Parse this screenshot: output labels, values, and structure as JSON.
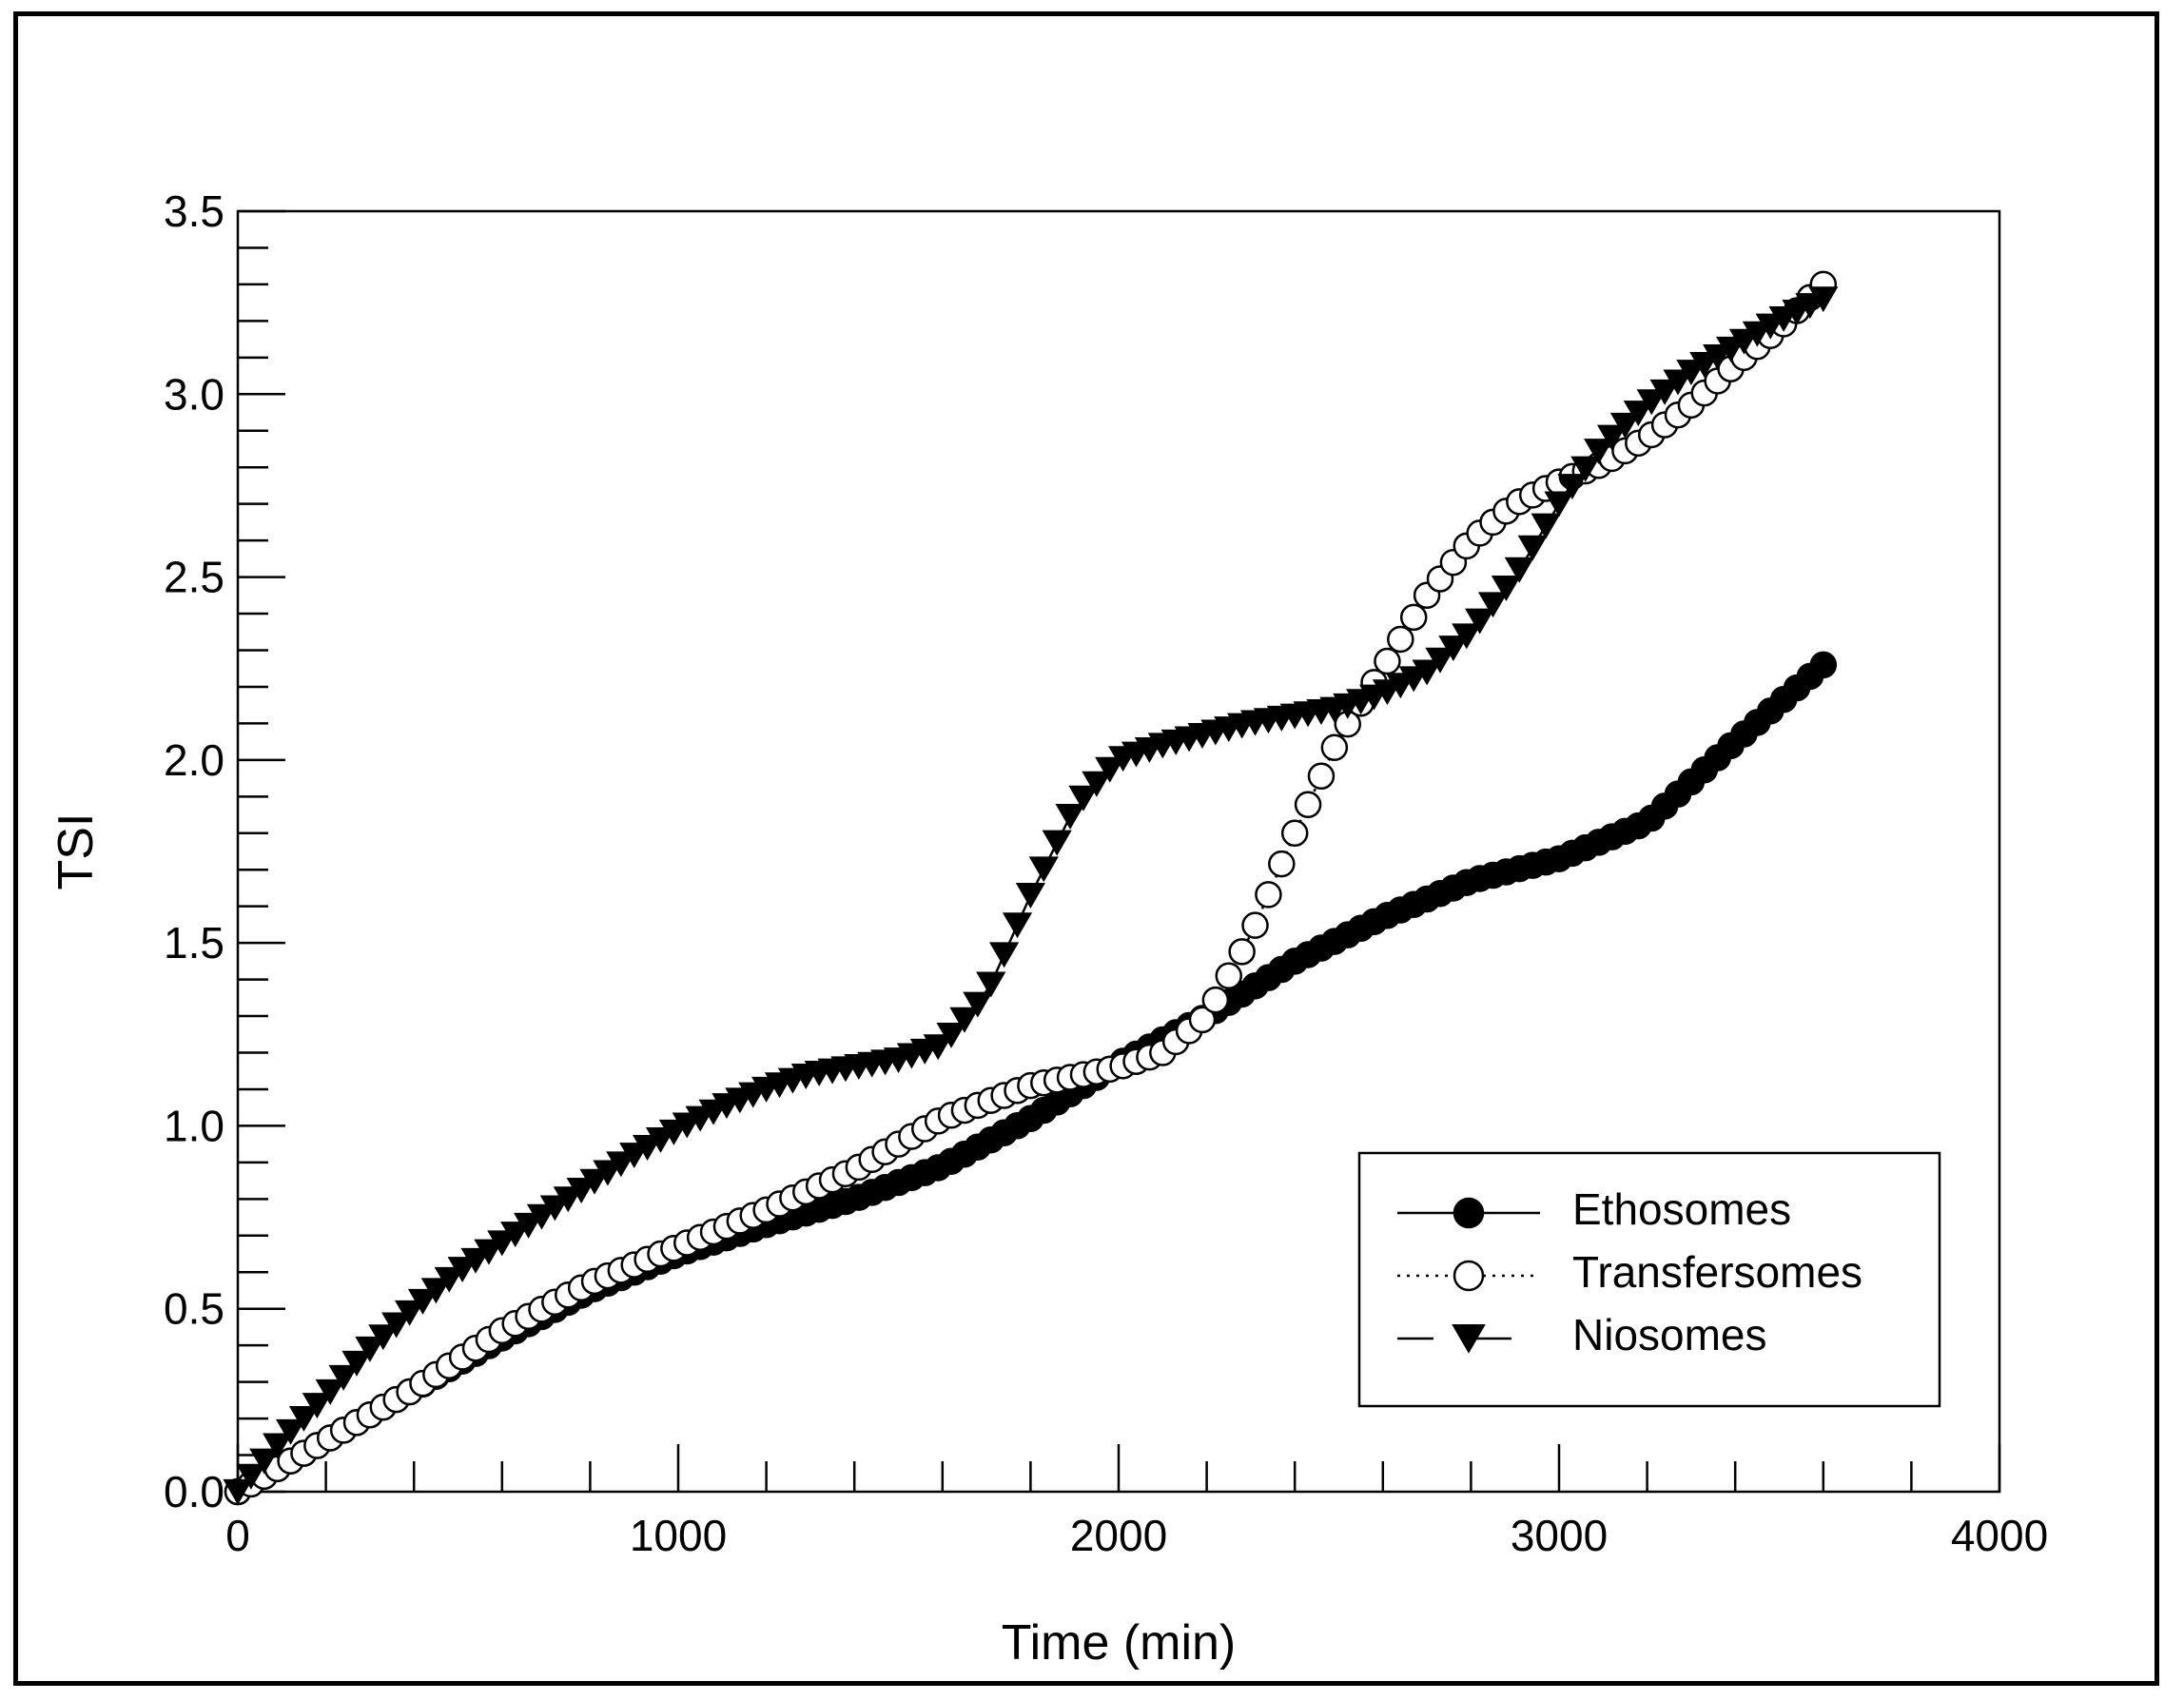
{
  "chart_data": {
    "type": "scatter",
    "title": "",
    "xlabel": "Time (min)",
    "ylabel": "TSI",
    "xlim": [
      0,
      4000
    ],
    "ylim": [
      0,
      3.5
    ],
    "x_major_ticks": [
      0,
      1000,
      2000,
      3000,
      4000
    ],
    "x_tick_labels": [
      "0",
      "1000",
      "2000",
      "3000",
      "4000"
    ],
    "y_major_ticks": [
      0,
      0.5,
      1.0,
      1.5,
      2.0,
      2.5,
      3.0,
      3.5
    ],
    "y_tick_labels": [
      "0.0",
      "0.5",
      "1.0",
      "1.5",
      "2.0",
      "2.5",
      "3.0",
      "3.5"
    ],
    "grid": false,
    "legend_position": "bottom-right",
    "series": [
      {
        "name": "Ethosomes",
        "line_style": "solid",
        "marker": "filled-circle",
        "x": [
          0,
          200,
          400,
          600,
          800,
          1000,
          1200,
          1400,
          1600,
          1800,
          2000,
          2200,
          2400,
          2600,
          2800,
          3000,
          3200,
          3400,
          3600
        ],
        "y": [
          0,
          0.14,
          0.28,
          0.42,
          0.55,
          0.65,
          0.73,
          0.8,
          0.89,
          1.02,
          1.17,
          1.3,
          1.45,
          1.57,
          1.67,
          1.73,
          1.83,
          2.05,
          2.26
        ]
      },
      {
        "name": "Transfersomes",
        "line_style": "dotted",
        "marker": "open-circle",
        "x": [
          0,
          200,
          400,
          600,
          800,
          1000,
          1200,
          1400,
          1600,
          1800,
          2000,
          2100,
          2200,
          2300,
          2400,
          2500,
          2600,
          2700,
          2800,
          2900,
          3000,
          3100,
          3200,
          3300,
          3400,
          3500,
          3600
        ],
        "y": [
          0,
          0.14,
          0.28,
          0.44,
          0.57,
          0.67,
          0.77,
          0.88,
          1.02,
          1.11,
          1.16,
          1.2,
          1.3,
          1.52,
          1.8,
          2.06,
          2.25,
          2.45,
          2.6,
          2.7,
          2.76,
          2.81,
          2.88,
          2.97,
          3.08,
          3.18,
          3.3
        ]
      },
      {
        "name": "Niosomes",
        "line_style": "dashed",
        "marker": "filled-triangle-down",
        "x": [
          0,
          100,
          200,
          300,
          400,
          500,
          600,
          700,
          800,
          900,
          1000,
          1100,
          1200,
          1300,
          1400,
          1500,
          1600,
          1700,
          1800,
          1900,
          2000,
          2100,
          2200,
          2300,
          2400,
          2500,
          2600,
          2700,
          2800,
          2900,
          3000,
          3100,
          3200,
          3300,
          3400,
          3500,
          3600
        ],
        "y": [
          0,
          0.14,
          0.26,
          0.39,
          0.5,
          0.6,
          0.68,
          0.76,
          0.84,
          0.92,
          0.99,
          1.05,
          1.1,
          1.14,
          1.16,
          1.18,
          1.22,
          1.36,
          1.63,
          1.87,
          2.0,
          2.04,
          2.07,
          2.1,
          2.12,
          2.14,
          2.18,
          2.24,
          2.35,
          2.5,
          2.7,
          2.86,
          2.97,
          3.06,
          3.13,
          3.2,
          3.26
        ]
      }
    ]
  }
}
